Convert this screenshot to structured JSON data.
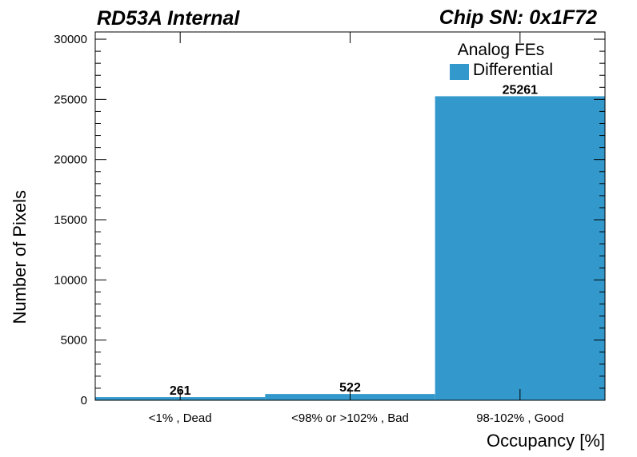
{
  "header": {
    "left_title": "RD53A Internal",
    "right_title": "Chip SN: 0x1F72"
  },
  "legend": {
    "title": "Analog FEs",
    "entries": [
      {
        "label": "Differential",
        "color": "#3399cc"
      }
    ]
  },
  "chart_data": {
    "type": "bar",
    "title": "",
    "xlabel": "Occupancy [%]",
    "ylabel": "Number of Pixels",
    "categories": [
      "<1% , Dead",
      "<98% or >102% , Bad",
      "98-102% , Good"
    ],
    "series": [
      {
        "name": "Differential",
        "values": [
          261,
          522,
          25261
        ],
        "color": "#3399cc"
      }
    ],
    "data_labels": [
      "261",
      "522",
      "25261"
    ],
    "ylim": [
      0,
      30600
    ],
    "yticks_major": [
      0,
      5000,
      10000,
      15000,
      20000,
      25000,
      30000
    ],
    "ytick_labels": [
      "0",
      "5000",
      "10000",
      "15000",
      "20000",
      "25000",
      "30000"
    ],
    "y_minor_step": 1000,
    "grid": false,
    "legend_position": "top-right"
  }
}
